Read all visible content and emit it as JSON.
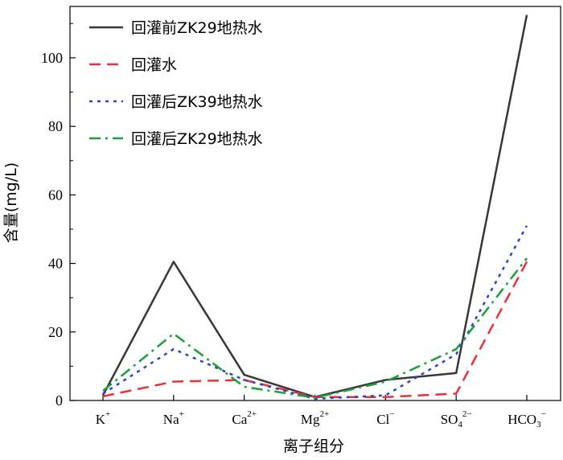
{
  "chart_data": {
    "type": "line",
    "categories": [
      "K",
      "Na",
      "Ca",
      "Mg",
      "Cl",
      "SO",
      "HCO"
    ],
    "category_superscripts": [
      "+",
      "+",
      "2+",
      "2+",
      "−",
      "2−",
      "−"
    ],
    "category_subscripts": [
      "",
      "",
      "",
      "",
      "",
      "4",
      "3"
    ],
    "ylabel": "含量(mg/L)",
    "xlabel": "离子组分",
    "ylim": [
      0,
      115
    ],
    "y_ticks": [
      0,
      20,
      40,
      60,
      80,
      100
    ],
    "grid": false,
    "legend_position": "top-left",
    "series": [
      {
        "name": "回灌前ZK29地热水",
        "color": "#3d3535",
        "dash": "solid",
        "values": [
          1.5,
          40.5,
          7.5,
          1.0,
          6.0,
          8.0,
          112.5
        ]
      },
      {
        "name": "回灌水",
        "color": "#e8313a",
        "dash": "dashed",
        "values": [
          1.2,
          5.5,
          6.0,
          1.0,
          1.0,
          2.0,
          40.5
        ]
      },
      {
        "name": "回灌后ZK39地热水",
        "color": "#2b46c4",
        "dash": "dotted",
        "values": [
          2.0,
          15.0,
          6.0,
          0.5,
          1.5,
          13.5,
          51.0
        ]
      },
      {
        "name": "回灌后ZK29地热水",
        "color": "#1a9e3e",
        "dash": "dashdot",
        "values": [
          2.8,
          19.5,
          4.0,
          0.8,
          5.5,
          15.0,
          41.5
        ]
      }
    ]
  }
}
